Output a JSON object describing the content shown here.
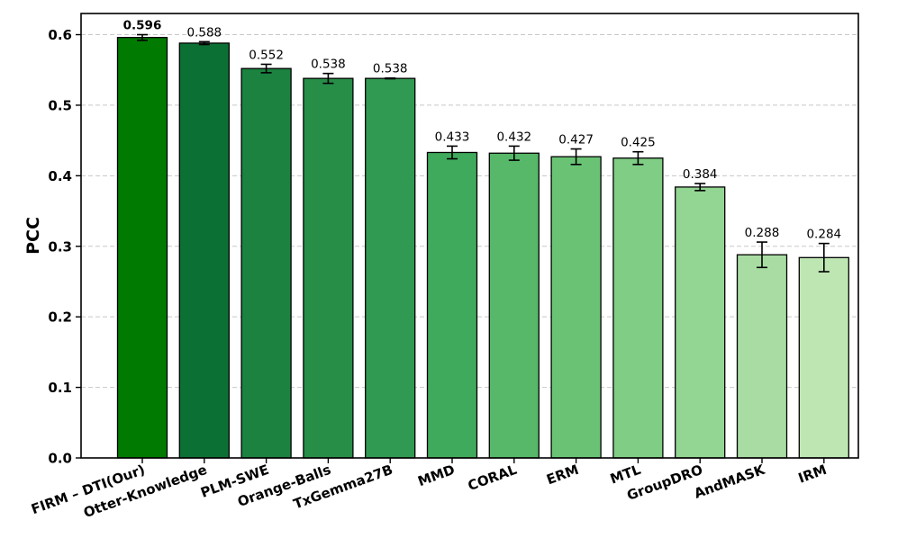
{
  "chart_data": {
    "type": "bar",
    "title": "",
    "xlabel": "",
    "ylabel": "PCC",
    "ylim": [
      0,
      0.63
    ],
    "yticks": [
      0.0,
      0.1,
      0.2,
      0.3,
      0.4,
      0.5,
      0.6
    ],
    "ytick_labels": [
      "0.0",
      "0.1",
      "0.2",
      "0.3",
      "0.4",
      "0.5",
      "0.6"
    ],
    "grid": "y-dashed",
    "categories": [
      "FIRM – DTI(Our)",
      "Otter-Knowledge",
      "PLM-SWE",
      "Orange-Balls",
      "TxGemma27B",
      "MMD",
      "CORAL",
      "ERM",
      "MTL",
      "GroupDRO",
      "AndMASK",
      "IRM"
    ],
    "values": [
      0.596,
      0.588,
      0.552,
      0.538,
      0.538,
      0.433,
      0.432,
      0.427,
      0.425,
      0.384,
      0.288,
      0.284
    ],
    "value_labels": [
      "0.596",
      "0.588",
      "0.552",
      "0.538",
      "0.538",
      "0.433",
      "0.432",
      "0.427",
      "0.425",
      "0.384",
      "0.288",
      "0.284"
    ],
    "errors": [
      0.004,
      0.002,
      0.006,
      0.007,
      0.0005,
      0.009,
      0.01,
      0.011,
      0.009,
      0.005,
      0.018,
      0.02
    ],
    "highlight_index": 0,
    "colors": [
      "#007a00",
      "#0b7034",
      "#1b8240",
      "#278e48",
      "#319a52",
      "#40aa5c",
      "#56b868",
      "#6ac375",
      "#80cd85",
      "#93d592",
      "#a9dca3",
      "#bde6b3"
    ]
  }
}
